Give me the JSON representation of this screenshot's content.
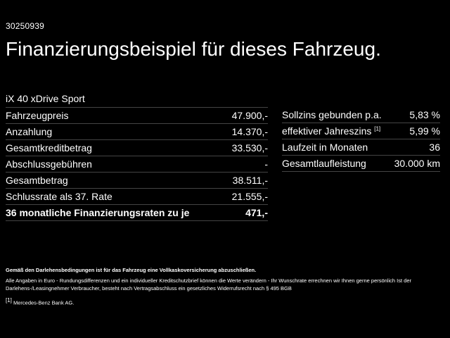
{
  "offer_id": "30250939",
  "headline": "Finanzierungsbeispiel für dieses Fahrzeug.",
  "model": "iX 40 xDrive Sport",
  "left_rows": [
    {
      "label": "Fahrzeugpreis",
      "value": "47.900,-"
    },
    {
      "label": "Anzahlung",
      "value": "14.370,-"
    },
    {
      "label": "Gesamtkreditbetrag",
      "value": "33.530,-"
    },
    {
      "label": "Abschlussgebühren",
      "value": "-"
    },
    {
      "label": "Gesamtbetrag",
      "value": "38.511,-"
    },
    {
      "label": "Schlussrate als 37. Rate",
      "value": "21.555,-"
    },
    {
      "label": "36 monatliche Finanzierungsraten zu je",
      "value": "471,-"
    }
  ],
  "right_rows": [
    {
      "label": "Sollzins gebunden p.a.",
      "value": "5,83 %"
    },
    {
      "label": "effektiver Jahreszins",
      "marker": "[1]",
      "value": "5,99 %"
    },
    {
      "label": "Laufzeit in Monaten",
      "value": "36"
    },
    {
      "label": "Gesamtlaufleistung",
      "value": "30.000 km"
    }
  ],
  "notes": {
    "insurance": "Gemäß den Darlehensbedingungen ist für das Fahrzeug eine Vollkaskoversicherung abzuschließen.",
    "disclaimer": "Alle Angaben in Euro - Rundungsdifferenzen und ein individueller Kreditschutzbrief können die Werte verändern - Ihr Wunschrate errechnen wir Ihnen gerne persönlich Ist der Darlehens-/Leasingnehmer Verbraucher, besteht nach Vertragsabschluss ein gesetzliches Widerrufsrecht nach § 495 BGB",
    "footnote_marker": "[1]",
    "footnote_text": "Mercedes-Benz Bank AG."
  }
}
